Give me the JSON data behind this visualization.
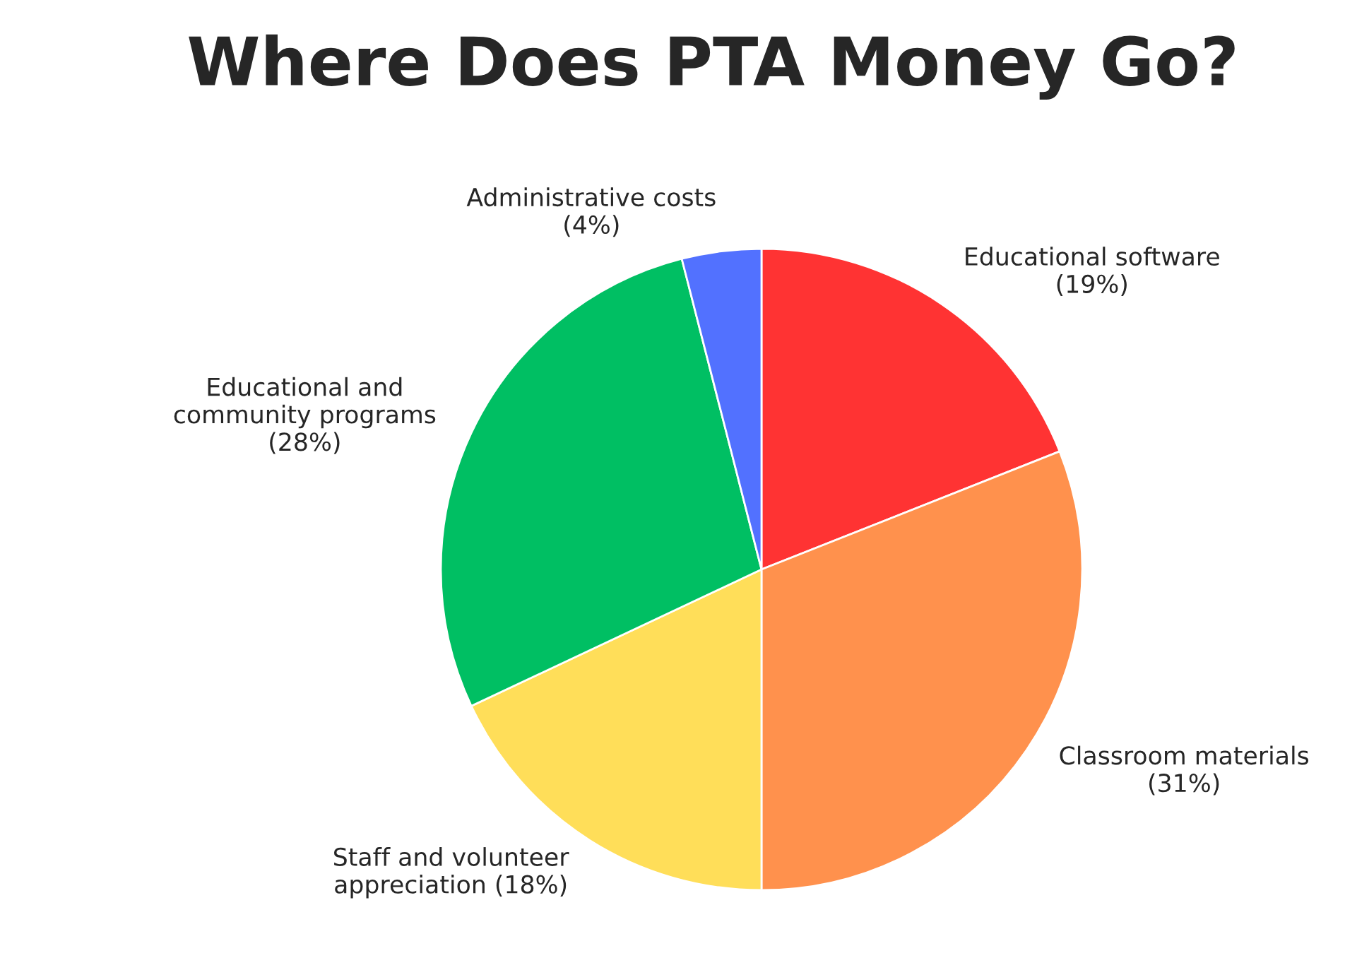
{
  "chart_data": {
    "type": "pie",
    "title": "Where Does PTA Money Go?",
    "categories": [
      "Educational software",
      "Classroom materials",
      "Staff and volunteer appreciation",
      "Educational and community programs",
      "Administrative costs"
    ],
    "values": [
      19,
      31,
      18,
      28,
      4
    ],
    "value_labels": [
      "(19%)",
      "(31%)",
      "(18%)",
      "(28%)",
      "(4%)"
    ],
    "colors": [
      "#ff3333",
      "#ff914d",
      "#ffde59",
      "#00bf63",
      "#5271ff"
    ],
    "legend": false
  }
}
